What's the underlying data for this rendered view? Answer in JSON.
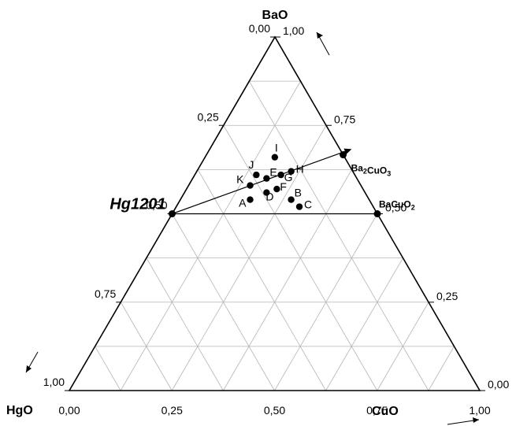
{
  "chart_data": {
    "type": "scatter",
    "subtype": "ternary",
    "title": "",
    "components": {
      "top": "BaO",
      "left": "HgO",
      "right": "CuO"
    },
    "axes": {
      "bottom": {
        "component": "CuO",
        "ticks": [
          "0,00",
          "0,25",
          "0,50",
          "0,75",
          "1,00"
        ]
      },
      "left": {
        "component": "HgO",
        "ticks": [
          "0,00",
          "0,25",
          "0,50",
          "0,75",
          "1,00"
        ]
      },
      "right": {
        "component": "BaO",
        "ticks": [
          "1,00",
          "0,75",
          "0,50",
          "0,25",
          "0,00"
        ]
      }
    },
    "grid": true,
    "grid_step": 0.125,
    "points": [
      {
        "label": "A",
        "BaO": 0.54,
        "CuO": 0.17
      },
      {
        "label": "B",
        "BaO": 0.54,
        "CuO": 0.27
      },
      {
        "label": "C",
        "BaO": 0.52,
        "CuO": 0.3
      },
      {
        "label": "D",
        "BaO": 0.56,
        "CuO": 0.2
      },
      {
        "label": "E",
        "BaO": 0.6,
        "CuO": 0.18
      },
      {
        "label": "F",
        "BaO": 0.57,
        "CuO": 0.22
      },
      {
        "label": "G",
        "BaO": 0.61,
        "CuO": 0.21
      },
      {
        "label": "H",
        "BaO": 0.62,
        "CuO": 0.23
      },
      {
        "label": "I",
        "BaO": 0.66,
        "CuO": 0.17
      },
      {
        "label": "J",
        "BaO": 0.61,
        "CuO": 0.15
      },
      {
        "label": "K",
        "BaO": 0.58,
        "CuO": 0.15
      }
    ],
    "reference_points": [
      {
        "label": "Hg1201",
        "BaO": 0.5,
        "CuO": 0.0
      },
      {
        "label": "Ba2CuO3",
        "label_parts": [
          "Ba",
          "2",
          "CuO",
          "3"
        ],
        "BaO": 0.667,
        "CuO": 0.333
      },
      {
        "label": "BaCuO2",
        "label_parts": [
          "Ba",
          "CuO",
          "2"
        ],
        "BaO": 0.5,
        "CuO": 0.5
      }
    ],
    "reference_lines": [
      {
        "from": {
          "BaO": 0.5,
          "CuO": 0.0
        },
        "to": {
          "BaO": 0.5,
          "CuO": 0.5
        }
      },
      {
        "from": {
          "BaO": 0.5,
          "CuO": 0.0
        },
        "to": {
          "BaO": 1.0,
          "CuO": 0.0
        }
      },
      {
        "from": {
          "BaO": 0.5,
          "CuO": 0.0
        },
        "to": {
          "BaO": 0.68,
          "CuO": 0.34
        },
        "arrow": true
      }
    ]
  }
}
